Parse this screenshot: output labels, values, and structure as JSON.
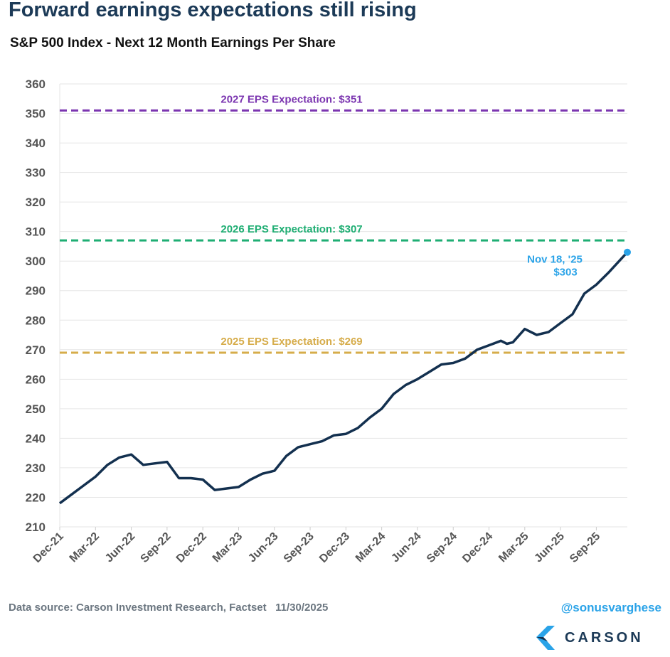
{
  "header": {
    "title": "Forward earnings expectations still rising",
    "subtitle": "S&P 500 Index - Next 12 Month Earnings Per Share"
  },
  "footer": {
    "source": "Data source: Carson Investment Research, Factset   11/30/2025",
    "handle": "@sonusvarghese",
    "logo": "CARSON"
  },
  "colors": {
    "line": "#13304f",
    "point": "#2aa3e8",
    "exp2027": "#7b35b0",
    "exp2026": "#1fae73",
    "exp2025": "#d6ac4a",
    "grid": "#e6e6e6",
    "tick": "#555555"
  },
  "chart_data": {
    "type": "line",
    "title": "S&P 500 Index - Next 12 Month Earnings Per Share",
    "ylim": [
      210,
      360
    ],
    "yticks": [
      210,
      220,
      230,
      240,
      250,
      260,
      270,
      280,
      290,
      300,
      310,
      320,
      330,
      340,
      350,
      360
    ],
    "xtick_labels": [
      "Dec-21",
      "Mar-22",
      "Jun-22",
      "Sep-22",
      "Dec-22",
      "Mar-23",
      "Jun-23",
      "Sep-23",
      "Dec-23",
      "Mar-24",
      "Jun-24",
      "Sep-24",
      "Dec-24",
      "Mar-25",
      "Jun-25",
      "Sep-25"
    ],
    "x_unit": "months since Dec-21",
    "xlim": [
      0,
      47.6
    ],
    "series": [
      {
        "name": "Next 12 Month EPS",
        "x": [
          0,
          1,
          2,
          3,
          4,
          5,
          6,
          7,
          8,
          9,
          10,
          11,
          12,
          13,
          14,
          15,
          16,
          17,
          18,
          19,
          20,
          21,
          22,
          23,
          24,
          25,
          26,
          27,
          28,
          29,
          30,
          31,
          32,
          33,
          34,
          35,
          36,
          37,
          37.5,
          38,
          39,
          40,
          41,
          42,
          43,
          44,
          45,
          46,
          47.6
        ],
        "values": [
          218,
          221,
          224,
          227,
          231,
          233.5,
          234.5,
          231,
          231.5,
          232,
          226.5,
          226.5,
          226,
          222.5,
          223,
          223.5,
          226,
          228,
          229,
          234,
          237,
          238,
          239,
          241,
          241.5,
          243.5,
          247,
          250,
          255,
          258,
          260,
          262.5,
          265,
          265.5,
          267,
          270,
          271.5,
          273,
          272,
          272.5,
          277,
          275,
          276,
          279,
          282,
          289,
          292,
          296,
          303
        ]
      }
    ],
    "reference_lines": [
      {
        "label": "2027 EPS Expectation: $351",
        "value": 351
      },
      {
        "label": "2026 EPS Expectation: $307",
        "value": 307
      },
      {
        "label": "2025 EPS Expectation: $269",
        "value": 269
      }
    ],
    "annotation": {
      "date": "Nov 18, '25",
      "value_label": "$303"
    }
  }
}
